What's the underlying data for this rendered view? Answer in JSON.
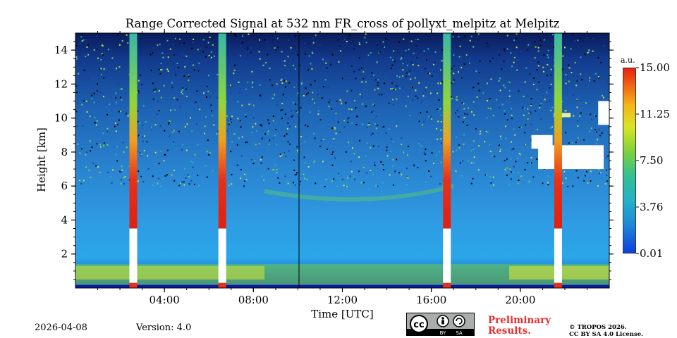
{
  "chart_data": {
    "type": "heatmap",
    "title": "Range Corrected Signal at 532 nm FR_cross of pollyxt_melpitz at Melpitz",
    "xlabel": "Time [UTC]",
    "ylabel": "Height [km]",
    "x_ticks": [
      "04:00",
      "08:00",
      "12:00",
      "16:00",
      "20:00"
    ],
    "y_ticks": [
      "2",
      "4",
      "6",
      "8",
      "10",
      "12",
      "14"
    ],
    "xlim_hours": [
      0,
      24
    ],
    "ylim_km": [
      0,
      15
    ],
    "colorbar": {
      "unit": "a.u.",
      "ticks": [
        "15.00",
        "11.25",
        "7.50",
        "3.76",
        "0.01"
      ],
      "range": [
        0.01,
        15.0
      ]
    },
    "features": {
      "calibration_columns_hours": [
        2.6,
        6.6,
        16.7,
        21.7
      ],
      "boundary_layer_top_km": 1.4,
      "high_cloud": {
        "start_hour": 20.2,
        "end_hour": 24,
        "base_km": 7.0,
        "top_km": 11.0
      }
    }
  },
  "footer": {
    "date": "2026-04-08",
    "version": "Version: 4.0",
    "preliminary": [
      "Preliminary",
      "Results."
    ],
    "copyright": [
      "© TROPOS 2026.",
      "CC BY SA 4.0 License."
    ],
    "license_badge": {
      "cc": "cc",
      "by": "BY",
      "sa": "SA"
    }
  },
  "colors": {
    "background": "#ffffff",
    "preliminary_text": "#e83030",
    "badge_gray": "#a9aeaa"
  }
}
